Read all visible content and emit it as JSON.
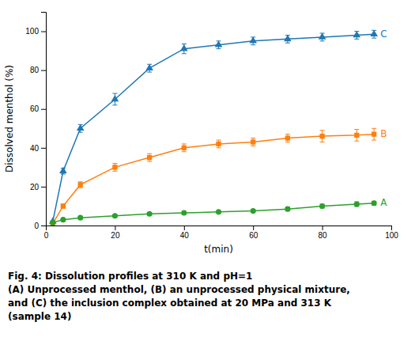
{
  "chart_data": {
    "type": "line",
    "xlabel": "t(min)",
    "ylabel": "Dissolved menthol (%)",
    "x": [
      2,
      5,
      10,
      20,
      30,
      40,
      50,
      60,
      70,
      80,
      90,
      95
    ],
    "series": [
      {
        "name": "C",
        "marker": "triangle",
        "line_style": "solid",
        "values": [
          2,
          28,
          50,
          65,
          81,
          91,
          93,
          95,
          96,
          97,
          98,
          98.5
        ],
        "errors": [
          0.5,
          1.5,
          2.0,
          3.0,
          2.0,
          2.5,
          2.0,
          2.0,
          2.0,
          2.0,
          2.0,
          2.0
        ]
      },
      {
        "name": "B",
        "marker": "square",
        "line_style": "solid",
        "values": [
          1,
          10,
          21,
          30,
          35,
          40,
          42,
          43,
          45,
          46,
          46.5,
          47
        ],
        "errors": [
          0.3,
          1.0,
          1.5,
          2.0,
          2.0,
          2.0,
          2.0,
          2.0,
          2.0,
          3.0,
          3.0,
          3.0
        ]
      },
      {
        "name": "A",
        "marker": "circle",
        "line_style": "solid",
        "values": [
          1.5,
          3,
          4,
          5,
          6,
          6.5,
          7,
          7.5,
          8.5,
          10,
          11,
          11.5
        ],
        "errors": [
          0.3,
          0.4,
          0.4,
          0.5,
          0.5,
          0.5,
          0.5,
          0.5,
          1.0,
          1.0,
          1.2,
          1.0
        ]
      }
    ],
    "xlim": [
      0,
      100
    ],
    "ylim": [
      0,
      110
    ],
    "xticks": [
      0,
      20,
      40,
      60,
      80,
      100
    ],
    "yticks": [
      0,
      20,
      40,
      60,
      80,
      100
    ],
    "grid": false,
    "caption": [
      "Fig. 4: Dissolution profiles at 310 K and pH=1",
      "(A) Unprocessed menthol, (B) an unprocessed physical mixture,",
      "and (C) the inclusion complex obtained at 20 MPa and 313 K",
      "(sample 14)"
    ]
  }
}
